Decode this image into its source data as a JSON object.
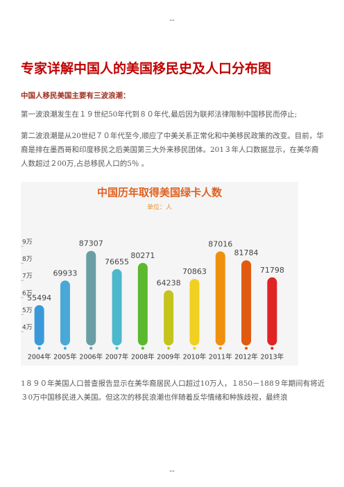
{
  "header": "--",
  "title": "专家详解中国人的美国移民史及人口分布图",
  "subtitle": "中国人移民美国主要有三波浪潮：",
  "paragraphs": [
    "第一波浪潮发生在１９世纪50年代到８０年代,最后因为联邦法律限制中国移民而停止;",
    "第二波浪潮是从20世纪７０年代至今,顺应了中美关系正常化和中美移民政策的改变。目前，华裔是排在墨西哥和印度移民之后美国第三大外来移民团体。201３年人口数据显示，在美华裔人数超过２00万,占总移民人口的5％ 。"
  ],
  "chart": {
    "type": "bar",
    "title": "中国历年取得美国绿卡人数",
    "subtitle": "单位：人",
    "categories": [
      "2004年",
      "2005年",
      "2006年",
      "2007年",
      "2008年",
      "2009年",
      "2010年",
      "2011年",
      "2012年",
      "2013年"
    ],
    "values": [
      55494,
      69933,
      87307,
      76655,
      80271,
      64238,
      70863,
      87016,
      81784,
      71798
    ],
    "colors": [
      "#3a9ad9",
      "#4aa8d6",
      "#6a9ea4",
      "#4db8cc",
      "#5cb82e",
      "#c4c41c",
      "#f0d020",
      "#f09010",
      "#e05a10",
      "#e02424"
    ],
    "ylim": [
      31900,
      95000
    ],
    "yticks": [
      {
        "value": 40000,
        "label": "4万"
      },
      {
        "value": 50000,
        "label": "5万"
      },
      {
        "value": 60000,
        "label": "6万"
      },
      {
        "value": 70000,
        "label": "7万"
      },
      {
        "value": 80000,
        "label": "8万"
      },
      {
        "value": 90000,
        "label": "9万"
      }
    ]
  },
  "closing": "1８９０年美国人口普查报告显示在美华裔居民人口超过10万人，１850－188９年期间有将近３0万中国移民进入美国。但这次的移民浪潮也伴随着反华情绪和种族歧视，最终浪",
  "footer": "--"
}
